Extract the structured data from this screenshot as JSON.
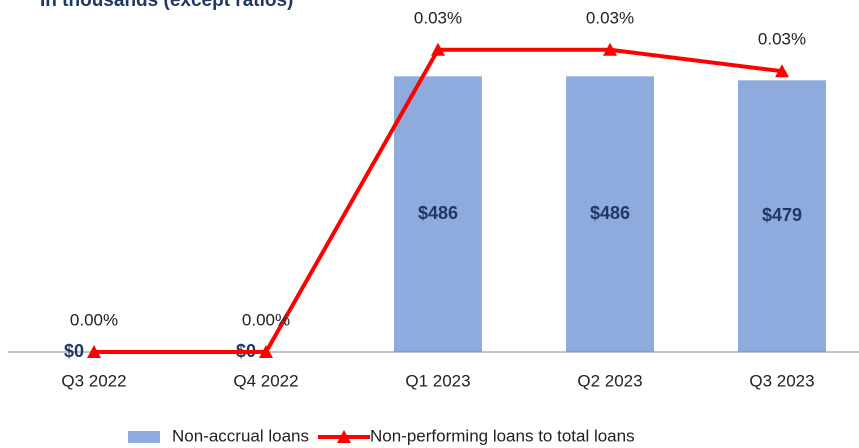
{
  "chart_data": {
    "type": "bar",
    "subtitle": "In thousands (except ratios)",
    "categories": [
      "Q3 2022",
      "Q4 2022",
      "Q1 2023",
      "Q2 2023",
      "Q3 2023"
    ],
    "series": [
      {
        "name": "Non-accrual loans",
        "type": "bar",
        "color": "#8faadc",
        "values": [
          0,
          0,
          486,
          486,
          479
        ],
        "value_labels": [
          "$0",
          "$0",
          "$486",
          "$486",
          "$479"
        ]
      },
      {
        "name": "Non-performing loans to total loans",
        "type": "line",
        "axis": "y2",
        "color": "#ff0000",
        "values": [
          0,
          0,
          0.0339,
          0.0339,
          0.0315
        ],
        "value_labels": [
          "0.00%",
          "0.00%",
          "0.03%",
          "0.03%",
          "0.03%"
        ]
      }
    ],
    "ylim": [
      0,
      550
    ],
    "y2lim": [
      0,
      0.035
    ],
    "legend": "bottom"
  }
}
